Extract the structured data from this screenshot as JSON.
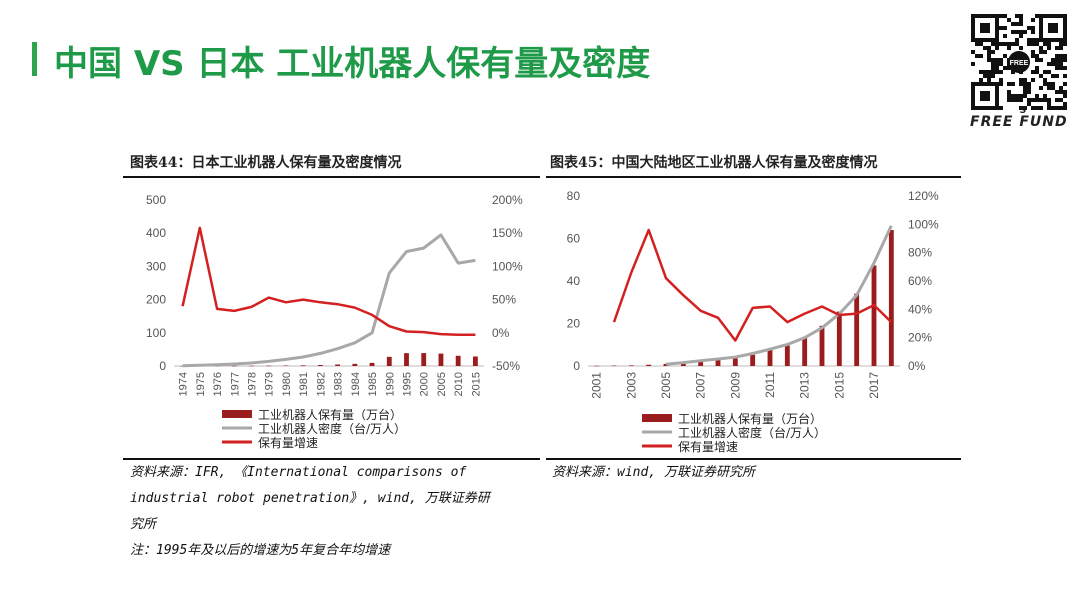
{
  "header": {
    "title": "中国 VS 日本 工业机器人保有量及密度",
    "brand": "FREE FUND",
    "brand_sup": "S",
    "qr_label": "FREE"
  },
  "figures": [
    {
      "title": "图表44：日本工业机器人保有量及密度情况"
    },
    {
      "title": "图表45：中国大陆地区工业机器人保有量及密度情况"
    }
  ],
  "sources": {
    "left": [
      "资料来源：IFR, 《International comparisons of",
      "industrial robot penetration》, wind, 万联证券研",
      "究所",
      "注：1995年及以后的增速为5年复合年均增速"
    ],
    "right": [
      "资料来源：wind, 万联证券研究所"
    ]
  },
  "colors": {
    "title_green": "#1f9a48",
    "bar": "#9b1c1c",
    "density": "#a8a8a8",
    "growth": "#d32020"
  },
  "chart_data": [
    {
      "type": "bar",
      "categories": [
        "1974",
        "1975",
        "1976",
        "1977",
        "1978",
        "1979",
        "1980",
        "1981",
        "1982",
        "1983",
        "1984",
        "1985",
        "1990",
        "1995",
        "2000",
        "2005",
        "2010",
        "2015"
      ],
      "series": [
        {
          "name": "工业机器人保有量（万台）",
          "type": "bar",
          "axis": "left",
          "values": [
            0.1,
            0.2,
            0.3,
            0.5,
            0.7,
            1.0,
            1.5,
            2.0,
            3.0,
            4.5,
            6.5,
            9.3,
            27.5,
            38.7,
            38.9,
            37.3,
            30.8,
            28.6
          ]
        },
        {
          "name": "工业机器人密度（台/万人）",
          "type": "line",
          "axis": "left",
          "values": [
            1,
            2,
            4,
            6,
            9,
            14,
            20,
            27,
            38,
            52,
            70,
            100,
            280,
            345,
            355,
            395,
            310,
            318
          ]
        },
        {
          "name": "保有量增速",
          "type": "line",
          "axis": "right",
          "values": [
            40,
            158,
            36,
            33,
            39,
            53,
            46,
            50,
            46,
            43,
            38,
            27,
            10,
            2,
            1,
            -2,
            -3,
            -3
          ]
        }
      ],
      "y_left": {
        "ticks": [
          "0",
          "100",
          "200",
          "300",
          "400",
          "500"
        ],
        "range": [
          0,
          500
        ]
      },
      "y_right": {
        "ticks": [
          "-50%",
          "0%",
          "50%",
          "100%",
          "150%",
          "200%"
        ],
        "range": [
          -50,
          200
        ]
      },
      "x_ticks": [
        "1974",
        "1975",
        "1976",
        "1977",
        "1978",
        "1979",
        "1980",
        "1981",
        "1982",
        "1983",
        "1984",
        "1985",
        "1990",
        "1995",
        "2000",
        "2005",
        "2010",
        "2015"
      ],
      "legend": [
        "工业机器人保有量（万台）",
        "工业机器人密度（台/万人）",
        "保有量增速"
      ],
      "grid": false,
      "legend_position": "bottom"
    },
    {
      "type": "bar",
      "categories": [
        "2001",
        "2002",
        "2003",
        "2004",
        "2005",
        "2006",
        "2007",
        "2008",
        "2009",
        "2010",
        "2011",
        "2012",
        "2013",
        "2014",
        "2015",
        "2016",
        "2017",
        "2018"
      ],
      "series": [
        {
          "name": "工业机器人保有量（万台）",
          "type": "bar",
          "axis": "left",
          "values": [
            0.1,
            0.2,
            0.3,
            0.6,
            1.0,
            1.4,
            2.0,
            2.8,
            3.6,
            5.3,
            7.5,
            9.7,
            13.2,
            18.9,
            25.6,
            34.0,
            47.3,
            64.0
          ]
        },
        {
          "name": "工业机器人密度（台/万人）",
          "type": "line",
          "axis": "left",
          "values": [
            null,
            null,
            null,
            null,
            0.8,
            1.6,
            2.5,
            3.3,
            4.2,
            5.9,
            7.9,
            10.1,
            13.3,
            18.0,
            24.5,
            33.3,
            48.5,
            66.0
          ]
        },
        {
          "name": "保有量增速",
          "type": "line",
          "axis": "right",
          "values": [
            null,
            31,
            66,
            96,
            62,
            50,
            39,
            34,
            18,
            41,
            42,
            31,
            37,
            42,
            36,
            37,
            43,
            31
          ]
        }
      ],
      "y_left": {
        "ticks": [
          "0",
          "20",
          "40",
          "60",
          "80"
        ],
        "range": [
          0,
          80
        ]
      },
      "y_right": {
        "ticks": [
          "0%",
          "20%",
          "40%",
          "60%",
          "80%",
          "100%",
          "120%"
        ],
        "range": [
          0,
          120
        ]
      },
      "x_ticks": [
        "2001",
        "2003",
        "2005",
        "2007",
        "2009",
        "2011",
        "2013",
        "2015",
        "2017"
      ],
      "legend": [
        "工业机器人保有量（万台）",
        "工业机器人密度（台/万人）",
        "保有量增速"
      ],
      "grid": false,
      "legend_position": "bottom"
    }
  ]
}
